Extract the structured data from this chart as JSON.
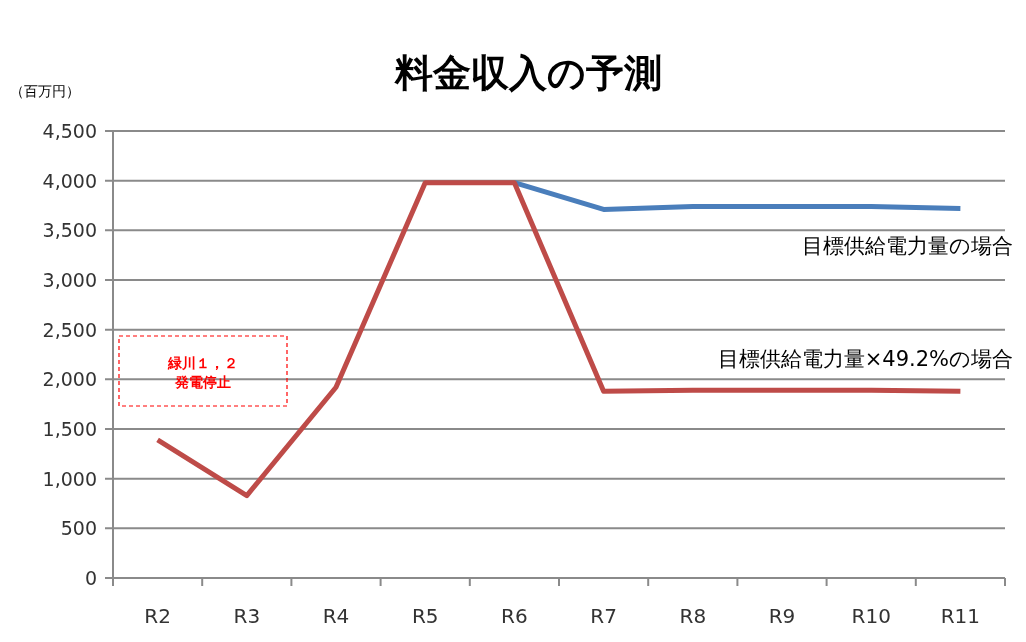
{
  "chart_data": {
    "type": "line",
    "title": "料金収入の予測",
    "ylabel": "（百万円）",
    "categories": [
      "R2",
      "R3",
      "R4",
      "R5",
      "R6",
      "R7",
      "R8",
      "R9",
      "R10",
      "R11"
    ],
    "series": [
      {
        "name": "目標供給電力量の場合",
        "color": "#4a7ebb",
        "values": [
          null,
          null,
          null,
          null,
          3980,
          3710,
          3740,
          3740,
          3740,
          3720
        ]
      },
      {
        "name": "目標供給電力量×49.2%の場合",
        "color": "#be4b48",
        "values": [
          1390,
          830,
          1920,
          3980,
          3980,
          1880,
          1890,
          1890,
          1890,
          1880
        ]
      }
    ],
    "ylim": [
      0,
      4500
    ],
    "yticks": [
      {
        "value": 0,
        "label": "0"
      },
      {
        "value": 500,
        "label": "500"
      },
      {
        "value": 1000,
        "label": "1,000"
      },
      {
        "value": 1500,
        "label": "1,500"
      },
      {
        "value": 2000,
        "label": "2,000"
      },
      {
        "value": 2500,
        "label": "2,500"
      },
      {
        "value": 3000,
        "label": "3,000"
      },
      {
        "value": 3500,
        "label": "3,500"
      },
      {
        "value": 4000,
        "label": "4,000"
      },
      {
        "value": 4500,
        "label": "4,500"
      }
    ],
    "grid": "y",
    "marker": "none",
    "line_style": "solid",
    "legend": false,
    "annotations": [
      "緑川１，２",
      "発電停止"
    ]
  }
}
